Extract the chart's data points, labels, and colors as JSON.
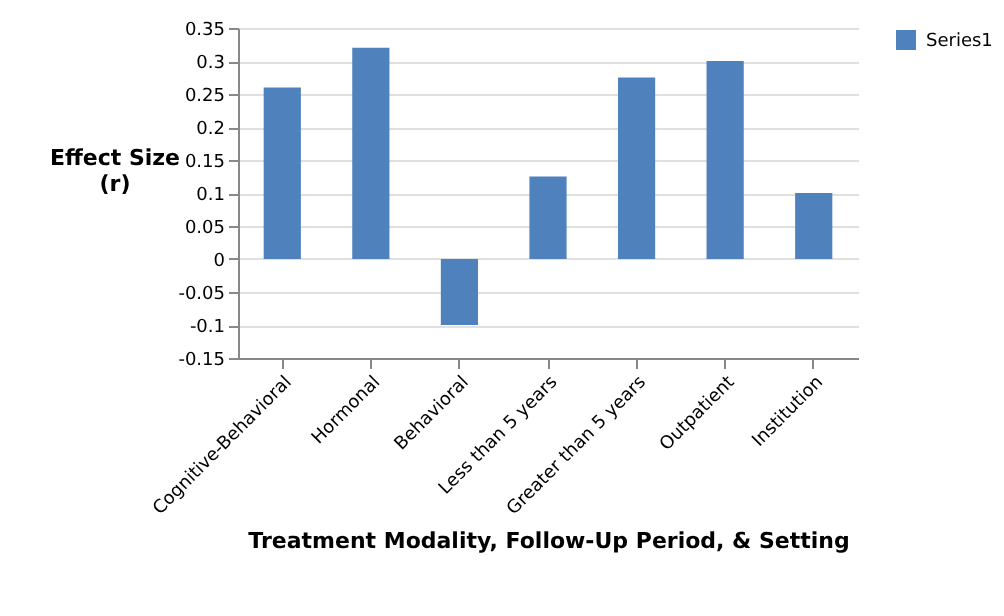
{
  "chart_data": {
    "type": "bar",
    "xlabel": "Treatment Modality, Follow-Up Period, & Setting",
    "ylabel": "Effect Size\n(r)",
    "categories": [
      "Cognitive-Behavioral",
      "Hormonal",
      "Behavioral",
      "Less than 5 years",
      "Greater than 5 years",
      "Outpatient",
      "Institution"
    ],
    "series": [
      {
        "name": "Series1",
        "color": "#4f81bd",
        "values": [
          0.26,
          0.32,
          -0.1,
          0.125,
          0.275,
          0.3,
          0.1
        ]
      }
    ],
    "ylim": [
      -0.15,
      0.35
    ],
    "yticks": [
      -0.15,
      -0.1,
      -0.05,
      0,
      0.05,
      0.1,
      0.15,
      0.2,
      0.25,
      0.3,
      0.35
    ],
    "grid": "y",
    "legend": "right"
  }
}
